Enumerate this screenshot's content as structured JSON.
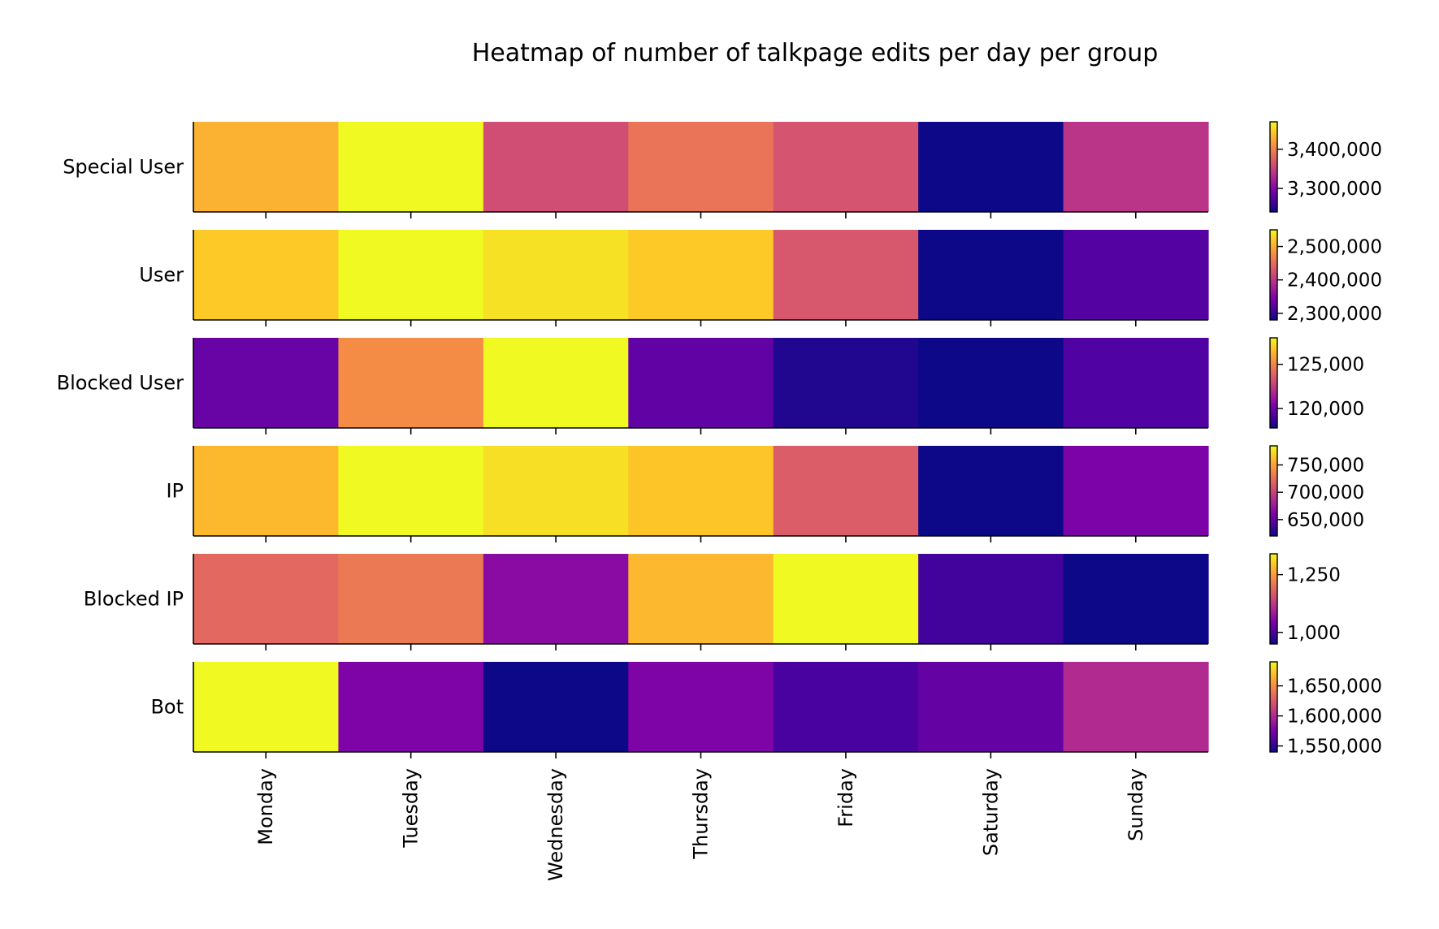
{
  "chart_data": {
    "type": "heatmap",
    "title": "Heatmap of number of talkpage edits per day per group",
    "colormap": "plasma",
    "days": [
      "Monday",
      "Tuesday",
      "Wednesday",
      "Thursday",
      "Friday",
      "Saturday",
      "Sunday"
    ],
    "groups": [
      {
        "name": "Special User",
        "values": [
          3430000,
          3470000,
          3360000,
          3390000,
          3365000,
          3240000,
          3340000
        ],
        "range": [
          3240000,
          3470000
        ],
        "ticks": [
          3300000,
          3400000
        ],
        "tick_labels": [
          "3,300,000",
          "3,400,000"
        ]
      },
      {
        "name": "User",
        "values": [
          2520000,
          2550000,
          2535000,
          2520000,
          2430000,
          2280000,
          2320000
        ],
        "range": [
          2280000,
          2550000
        ],
        "ticks": [
          2300000,
          2400000,
          2500000
        ],
        "tick_labels": [
          "2,300,000",
          "2,400,000",
          "2,500,000"
        ]
      },
      {
        "name": "Blocked User",
        "values": [
          119800,
          125200,
          128000,
          119600,
          118200,
          117800,
          119200
        ],
        "range": [
          117800,
          128000
        ],
        "ticks": [
          120000,
          125000
        ],
        "tick_labels": [
          "120,000",
          "125,000"
        ]
      },
      {
        "name": "IP",
        "values": [
          760000,
          785000,
          775000,
          765000,
          715000,
          620000,
          660000
        ],
        "range": [
          620000,
          785000
        ],
        "ticks": [
          650000,
          700000,
          750000
        ],
        "tick_labels": [
          "650,000",
          "700,000",
          "750,000"
        ]
      },
      {
        "name": "Blocked IP",
        "values": [
          1190,
          1210,
          1060,
          1280,
          1340,
          990,
          950
        ],
        "range": [
          950,
          1340
        ],
        "ticks": [
          1000,
          1250
        ],
        "tick_labels": [
          "1,000",
          "1,250"
        ]
      },
      {
        "name": "Bot",
        "values": [
          1690000,
          1578000,
          1540000,
          1578000,
          1558000,
          1568000,
          1600000
        ],
        "range": [
          1540000,
          1690000
        ],
        "ticks": [
          1550000,
          1600000,
          1650000
        ],
        "tick_labels": [
          "1,550,000",
          "1,600,000",
          "1,650,000"
        ]
      }
    ]
  }
}
